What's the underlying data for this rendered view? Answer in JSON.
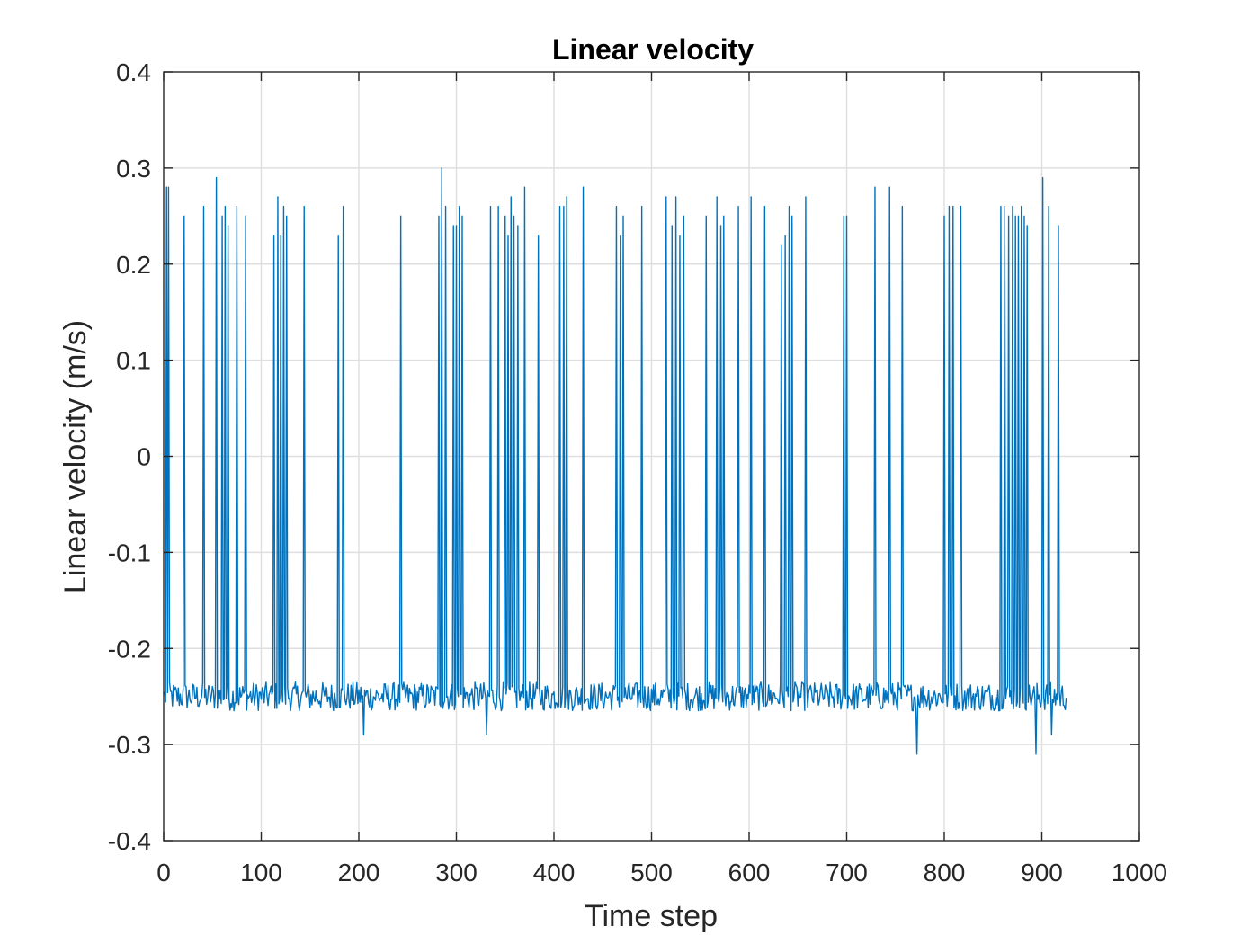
{
  "chart_data": {
    "type": "line",
    "title": "Linear velocity",
    "xlabel": "Time step",
    "ylabel": "Linear velocity (m/s)",
    "xlim": [
      0,
      1000
    ],
    "ylim": [
      -0.4,
      0.4
    ],
    "xticks": [
      0,
      100,
      200,
      300,
      400,
      500,
      600,
      700,
      800,
      900,
      1000
    ],
    "yticks": [
      -0.4,
      -0.3,
      -0.2,
      -0.1,
      0,
      0.1,
      0.2,
      0.3,
      0.4
    ],
    "grid": true,
    "color": "#0072bd",
    "series": [
      {
        "x_start": 1,
        "x_end": 925,
        "baseline": -0.25,
        "noise_amplitude": 0.015,
        "spikes": [
          {
            "x": 3,
            "y": 0.28
          },
          {
            "x": 5,
            "y": 0.28
          },
          {
            "x": 21,
            "y": 0.25
          },
          {
            "x": 41,
            "y": 0.26
          },
          {
            "x": 54,
            "y": 0.29
          },
          {
            "x": 60,
            "y": 0.25
          },
          {
            "x": 63,
            "y": 0.26
          },
          {
            "x": 66,
            "y": 0.24
          },
          {
            "x": 75,
            "y": 0.26
          },
          {
            "x": 84,
            "y": 0.25
          },
          {
            "x": 113,
            "y": 0.23
          },
          {
            "x": 117,
            "y": 0.27
          },
          {
            "x": 120,
            "y": 0.23
          },
          {
            "x": 123,
            "y": 0.26
          },
          {
            "x": 126,
            "y": 0.25
          },
          {
            "x": 144,
            "y": 0.26
          },
          {
            "x": 179,
            "y": 0.23
          },
          {
            "x": 184,
            "y": 0.26
          },
          {
            "x": 243,
            "y": 0.25
          },
          {
            "x": 282,
            "y": 0.25
          },
          {
            "x": 285,
            "y": 0.3
          },
          {
            "x": 289,
            "y": 0.26
          },
          {
            "x": 297,
            "y": 0.24
          },
          {
            "x": 300,
            "y": 0.24
          },
          {
            "x": 303,
            "y": 0.26
          },
          {
            "x": 306,
            "y": 0.25
          },
          {
            "x": 335,
            "y": 0.26
          },
          {
            "x": 343,
            "y": 0.26
          },
          {
            "x": 350,
            "y": 0.25
          },
          {
            "x": 353,
            "y": 0.23
          },
          {
            "x": 356,
            "y": 0.27
          },
          {
            "x": 359,
            "y": 0.25
          },
          {
            "x": 363,
            "y": 0.24
          },
          {
            "x": 370,
            "y": 0.28
          },
          {
            "x": 384,
            "y": 0.23
          },
          {
            "x": 406,
            "y": 0.26
          },
          {
            "x": 410,
            "y": 0.26
          },
          {
            "x": 413,
            "y": 0.27
          },
          {
            "x": 430,
            "y": 0.28
          },
          {
            "x": 464,
            "y": 0.26
          },
          {
            "x": 468,
            "y": 0.23
          },
          {
            "x": 471,
            "y": 0.25
          },
          {
            "x": 490,
            "y": 0.26
          },
          {
            "x": 515,
            "y": 0.27
          },
          {
            "x": 521,
            "y": 0.24
          },
          {
            "x": 525,
            "y": 0.27
          },
          {
            "x": 529,
            "y": 0.23
          },
          {
            "x": 533,
            "y": 0.25
          },
          {
            "x": 556,
            "y": 0.25
          },
          {
            "x": 567,
            "y": 0.27
          },
          {
            "x": 571,
            "y": 0.24
          },
          {
            "x": 574,
            "y": 0.25
          },
          {
            "x": 589,
            "y": 0.26
          },
          {
            "x": 602,
            "y": 0.27
          },
          {
            "x": 616,
            "y": 0.26
          },
          {
            "x": 633,
            "y": 0.22
          },
          {
            "x": 637,
            "y": 0.23
          },
          {
            "x": 641,
            "y": 0.26
          },
          {
            "x": 644,
            "y": 0.25
          },
          {
            "x": 658,
            "y": 0.27
          },
          {
            "x": 697,
            "y": 0.25
          },
          {
            "x": 700,
            "y": 0.25
          },
          {
            "x": 729,
            "y": 0.28
          },
          {
            "x": 744,
            "y": 0.28
          },
          {
            "x": 757,
            "y": 0.26
          },
          {
            "x": 800,
            "y": 0.25
          },
          {
            "x": 805,
            "y": 0.26
          },
          {
            "x": 809,
            "y": 0.26
          },
          {
            "x": 817,
            "y": 0.26
          },
          {
            "x": 858,
            "y": 0.26
          },
          {
            "x": 862,
            "y": 0.26
          },
          {
            "x": 866,
            "y": 0.25
          },
          {
            "x": 870,
            "y": 0.26
          },
          {
            "x": 873,
            "y": 0.25
          },
          {
            "x": 876,
            "y": 0.25
          },
          {
            "x": 879,
            "y": 0.26
          },
          {
            "x": 882,
            "y": 0.25
          },
          {
            "x": 885,
            "y": 0.24
          },
          {
            "x": 901,
            "y": 0.29
          },
          {
            "x": 907,
            "y": 0.26
          },
          {
            "x": 917,
            "y": 0.24
          }
        ],
        "dips": [
          {
            "x": 205,
            "y": -0.29
          },
          {
            "x": 331,
            "y": -0.29
          },
          {
            "x": 772,
            "y": -0.31
          },
          {
            "x": 894,
            "y": -0.31
          },
          {
            "x": 910,
            "y": -0.29
          }
        ]
      }
    ]
  }
}
